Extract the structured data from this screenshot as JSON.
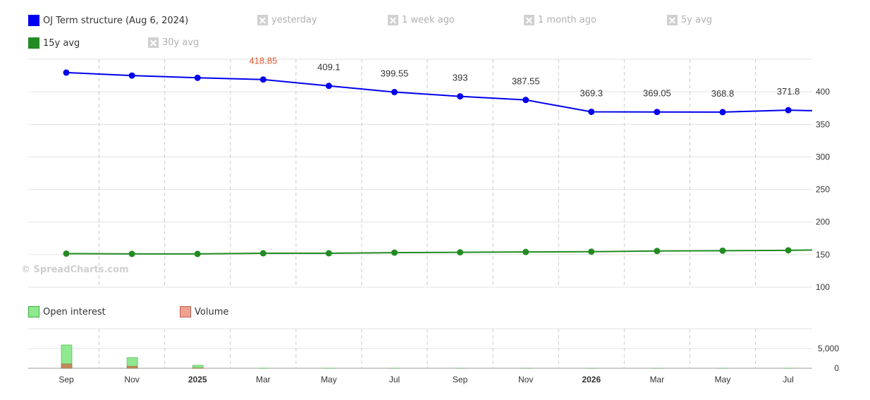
{
  "legend_top": [
    {
      "label": "OJ Term structure (Aug 6, 2024)",
      "color": "#0000ee",
      "active": true,
      "icon": "blue-square-icon"
    },
    {
      "label": "yesterday",
      "active": false,
      "icon": "disabled-x-icon"
    },
    {
      "label": "1 week ago",
      "active": false,
      "icon": "disabled-x-icon"
    },
    {
      "label": "1 month ago",
      "active": false,
      "icon": "disabled-x-icon"
    },
    {
      "label": "5y avg",
      "active": false,
      "icon": "disabled-x-icon"
    },
    {
      "label": "15y avg",
      "color": "#228b22",
      "active": true,
      "icon": "green-square-icon"
    },
    {
      "label": "30y avg",
      "active": false,
      "icon": "disabled-x-icon"
    }
  ],
  "legend_bottom": [
    {
      "label": "Open interest",
      "color": "#90e890",
      "border": "#3cb03c",
      "icon": "light-green-square-icon"
    },
    {
      "label": "Volume",
      "color": "#f0a090",
      "border": "#c06050",
      "icon": "salmon-square-icon"
    }
  ],
  "watermark": "© SpreadCharts.com",
  "chart_data": [
    {
      "type": "line",
      "x_ticks": [
        "Sep",
        "Nov",
        "2025",
        "Mar",
        "May",
        "Jul",
        "Sep",
        "Nov",
        "2026",
        "Mar",
        "May",
        "Jul"
      ],
      "x_ticks_bold": [
        "2025",
        "2026"
      ],
      "y_ticks": [
        100,
        150,
        200,
        250,
        300,
        350,
        400
      ],
      "ylim": [
        100,
        450
      ],
      "grid": true,
      "highlight_color": "#e8542c",
      "series": [
        {
          "name": "OJ Term structure (Aug 6, 2024)",
          "color": "#0000ee",
          "values": [
            429.5,
            425,
            421.5,
            418.85,
            409.1,
            399.55,
            393,
            387.55,
            369.3,
            369.05,
            368.8,
            371.8
          ],
          "trailing_value": 371,
          "labels": [
            "",
            "",
            "",
            "418.85",
            "409.1",
            "399.55",
            "393",
            "387.55",
            "369.3",
            "369.05",
            "368.8",
            "371.8"
          ],
          "highlight_label_index": 3
        },
        {
          "name": "15y avg",
          "color": "#228b22",
          "values": [
            151.5,
            151,
            151,
            152,
            152,
            153,
            153.5,
            154,
            154.5,
            155.5,
            156,
            156.5
          ],
          "trailing_value": 157
        }
      ]
    },
    {
      "type": "bar",
      "y_ticks": [
        0,
        5000
      ],
      "y_tick_labels": [
        "0",
        "5,000"
      ],
      "ylim": [
        0,
        10000
      ],
      "series": [
        {
          "name": "Open interest",
          "color": "#90e890",
          "border": "#3cb03c",
          "values": [
            5900,
            2700,
            750,
            30,
            15,
            10,
            5,
            5,
            5,
            5,
            5,
            5
          ]
        },
        {
          "name": "Volume",
          "color": "#c08a5a",
          "border": "#a06a40",
          "values": [
            1100,
            500,
            80,
            0,
            0,
            0,
            0,
            0,
            0,
            0,
            0,
            0
          ]
        }
      ]
    }
  ]
}
